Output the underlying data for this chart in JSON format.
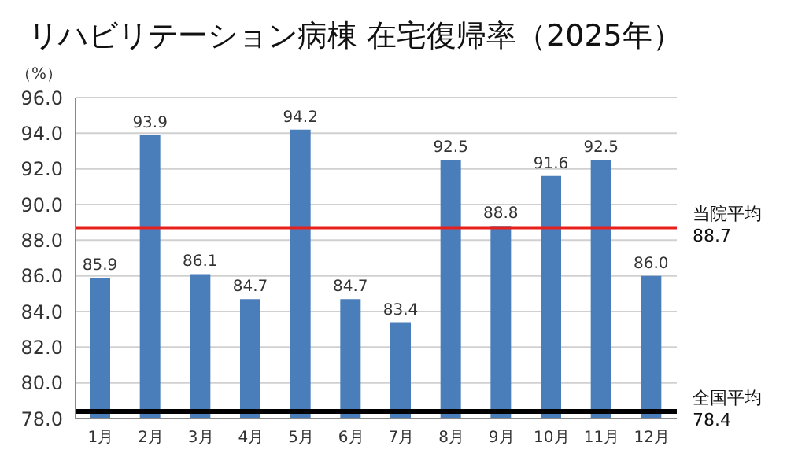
{
  "chart_data": {
    "type": "bar",
    "title": "リハビリテーション病棟 在宅復帰率（2025年）",
    "ylabel": "（%）",
    "categories": [
      "1月",
      "2月",
      "3月",
      "4月",
      "5月",
      "6月",
      "7月",
      "8月",
      "9月",
      "10月",
      "11月",
      "12月"
    ],
    "values": [
      85.9,
      93.9,
      86.1,
      84.7,
      94.2,
      84.7,
      83.4,
      92.5,
      88.8,
      91.6,
      92.5,
      86.0
    ],
    "value_labels": [
      "85.9",
      "93.9",
      "86.1",
      "84.7",
      "94.2",
      "84.7",
      "83.4",
      "92.5",
      "88.8",
      "91.6",
      "92.5",
      "86.0"
    ],
    "color": "#4a7ebb",
    "ylim": [
      78,
      96
    ],
    "yticks": [
      {
        "value": 78,
        "label": "78.0"
      },
      {
        "value": 80,
        "label": "80.0"
      },
      {
        "value": 82,
        "label": "82.0"
      },
      {
        "value": 84,
        "label": "84.0"
      },
      {
        "value": 86,
        "label": "86.0"
      },
      {
        "value": 88,
        "label": "88.0"
      },
      {
        "value": 90,
        "label": "90.0"
      },
      {
        "value": 92,
        "label": "92.0"
      },
      {
        "value": 94,
        "label": "94.0"
      },
      {
        "value": 96,
        "label": "96.0"
      }
    ],
    "grid": "y",
    "ref_lines": [
      {
        "axis": "y",
        "value": 88.7,
        "label": "当院平均\n88.7",
        "color": "#e8201c"
      },
      {
        "axis": "y",
        "value": 78.4,
        "label": "全国平均\n78.4",
        "color": "#000000"
      }
    ]
  }
}
